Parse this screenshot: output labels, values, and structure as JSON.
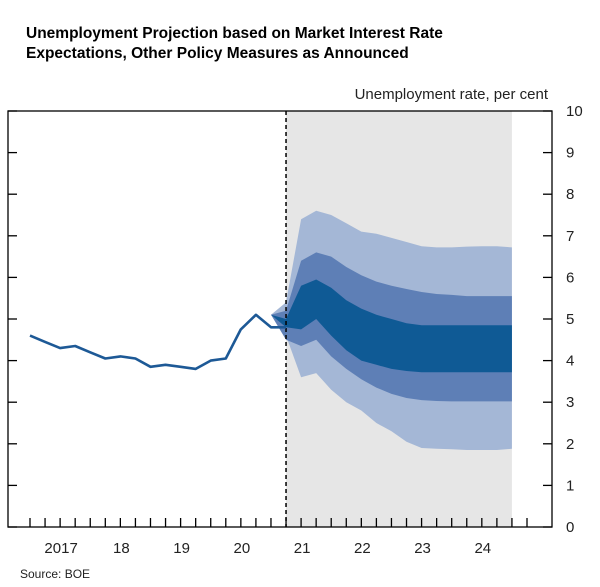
{
  "chart_data": {
    "type": "area",
    "title_line1": "Unemployment Projection based on Market Interest Rate",
    "title_line2": "Expectations, Other Policy Measures as Announced",
    "ylabel": "Unemployment rate, per cent",
    "source": "Source: BOE",
    "ylim": [
      0,
      10
    ],
    "xlim": [
      2016.5,
      2024.75
    ],
    "y_ticks": [
      0,
      1,
      2,
      3,
      4,
      5,
      6,
      7,
      8,
      9,
      10
    ],
    "y_tick_labels": [
      "0",
      "1",
      "2",
      "3",
      "4",
      "5",
      "6",
      "7",
      "8",
      "9",
      "10"
    ],
    "x_tick_labels": [
      {
        "label": "2017",
        "x": 2017.0
      },
      {
        "label": "18",
        "x": 2018.0
      },
      {
        "label": "19",
        "x": 2019.0
      },
      {
        "label": "20",
        "x": 2020.0
      },
      {
        "label": "21",
        "x": 2021.0
      },
      {
        "label": "22",
        "x": 2022.0
      },
      {
        "label": "23",
        "x": 2023.0
      },
      {
        "label": "24",
        "x": 2024.0
      }
    ],
    "projection_start": 2020.75,
    "projection_end": 2024.5,
    "history": {
      "name": "Unemployment rate",
      "x": [
        2016.5,
        2016.75,
        2017.0,
        2017.25,
        2017.5,
        2017.75,
        2018.0,
        2018.25,
        2018.5,
        2018.75,
        2019.0,
        2019.25,
        2019.5,
        2019.75,
        2020.0,
        2020.25,
        2020.5,
        2020.75
      ],
      "y": [
        4.6,
        4.45,
        4.3,
        4.35,
        4.2,
        4.05,
        4.1,
        4.05,
        3.85,
        3.9,
        3.85,
        3.8,
        4.0,
        4.05,
        4.75,
        5.1,
        4.8,
        4.8
      ]
    },
    "fan": {
      "x": [
        2020.5,
        2020.75,
        2021.0,
        2021.25,
        2021.5,
        2021.75,
        2022.0,
        2022.25,
        2022.5,
        2022.75,
        2023.0,
        2023.25,
        2023.5,
        2023.75,
        2024.0,
        2024.25,
        2024.5
      ],
      "bands": [
        {
          "name": "outer",
          "color": "#a4b7d6",
          "upper": [
            5.1,
            5.4,
            7.4,
            7.6,
            7.5,
            7.3,
            7.1,
            7.05,
            6.95,
            6.85,
            6.75,
            6.72,
            6.72,
            6.74,
            6.75,
            6.75,
            6.72
          ],
          "lower": [
            5.1,
            4.6,
            3.6,
            3.7,
            3.3,
            3.0,
            2.8,
            2.5,
            2.3,
            2.05,
            1.9,
            1.88,
            1.87,
            1.85,
            1.85,
            1.85,
            1.88
          ]
        },
        {
          "name": "middle",
          "color": "#5e7fb6",
          "upper": [
            5.1,
            5.2,
            6.4,
            6.6,
            6.5,
            6.25,
            6.05,
            5.9,
            5.8,
            5.72,
            5.65,
            5.6,
            5.58,
            5.55,
            5.55,
            5.55,
            5.55
          ],
          "lower": [
            5.1,
            4.5,
            4.35,
            4.5,
            4.1,
            3.8,
            3.55,
            3.35,
            3.2,
            3.1,
            3.05,
            3.03,
            3.02,
            3.02,
            3.02,
            3.02,
            3.02
          ]
        },
        {
          "name": "inner",
          "color": "#0f5a95",
          "upper": [
            5.1,
            5.0,
            5.8,
            5.95,
            5.75,
            5.45,
            5.25,
            5.1,
            5.0,
            4.9,
            4.85,
            4.85,
            4.85,
            4.85,
            4.85,
            4.85,
            4.85
          ],
          "lower": [
            5.1,
            4.8,
            4.75,
            5.0,
            4.6,
            4.25,
            4.0,
            3.9,
            3.8,
            3.75,
            3.72,
            3.72,
            3.72,
            3.72,
            3.72,
            3.72,
            3.72
          ]
        }
      ]
    }
  }
}
